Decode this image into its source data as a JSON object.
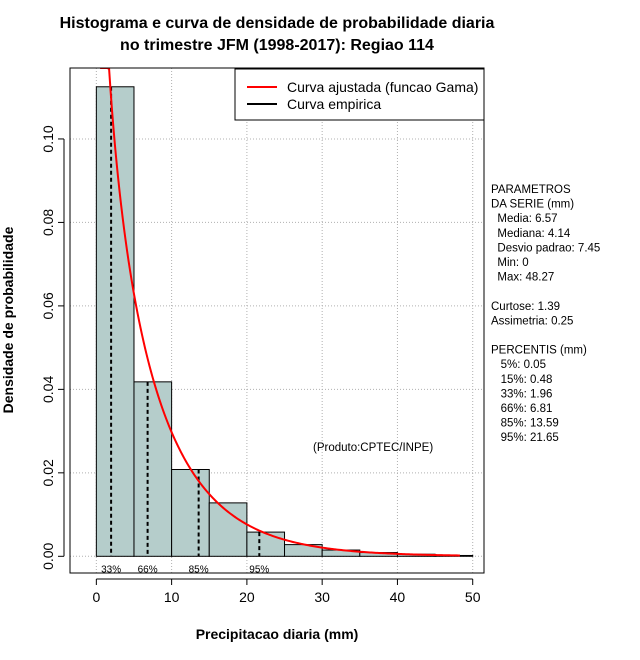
{
  "chart_data": {
    "type": "bar",
    "title_line1": "Histograma e curva de densidade de probabilidade diaria",
    "title_line2": "no trimestre JFM (1998-2017): Regiao 114",
    "xlabel": "Precipitacao diaria (mm)",
    "ylabel": "Densidade de probabilidade",
    "xlim": [
      -3.5,
      51.5
    ],
    "ylim": [
      -0.004,
      0.117
    ],
    "x_ticks": [
      0,
      10,
      20,
      30,
      40,
      50
    ],
    "y_ticks": [
      0.0,
      0.02,
      0.04,
      0.06,
      0.08,
      0.1
    ],
    "y_tick_labels": [
      "0.00",
      "0.02",
      "0.04",
      "0.06",
      "0.08",
      "0.10"
    ],
    "grid": true,
    "bins": [
      {
        "x0": 0,
        "x1": 5,
        "density": 0.1125
      },
      {
        "x0": 5,
        "x1": 10,
        "density": 0.0418
      },
      {
        "x0": 10,
        "x1": 15,
        "density": 0.0208
      },
      {
        "x0": 15,
        "x1": 20,
        "density": 0.0128
      },
      {
        "x0": 20,
        "x1": 25,
        "density": 0.0058
      },
      {
        "x0": 25,
        "x1": 30,
        "density": 0.0028
      },
      {
        "x0": 30,
        "x1": 35,
        "density": 0.0015
      },
      {
        "x0": 35,
        "x1": 40,
        "density": 0.0009
      },
      {
        "x0": 40,
        "x1": 45,
        "density": 0.0005
      },
      {
        "x0": 45,
        "x1": 50,
        "density": 0.0002
      }
    ],
    "fitted_curve": {
      "name": "Curva ajustada (funcao Gama)",
      "color": "#ff0000",
      "distribution": "gamma",
      "shape": 0.8,
      "scale": 8.2,
      "x_start": 0.5,
      "x_end": 48.3
    },
    "empirical_curve": {
      "name": "Curva empirica",
      "color": "#000000"
    },
    "percentile_markers": [
      {
        "label": "33%",
        "x": 1.96
      },
      {
        "label": "66%",
        "x": 6.81
      },
      {
        "label": "85%",
        "x": 13.59
      },
      {
        "label": "95%",
        "x": 21.65
      }
    ],
    "bar_color": "#b5cdcb",
    "credit": "(Produto:CPTEC/INPE)",
    "stats_lines": [
      "PARAMETROS",
      "DA SERIE (mm)",
      "  Media: 6.57",
      "  Mediana: 4.14",
      "  Desvio padrao: 7.45",
      "  Min: 0",
      "  Max: 48.27",
      "",
      "Curtose: 1.39",
      "Assimetria: 0.25",
      "",
      "PERCENTIS (mm)",
      "   5%: 0.05",
      "   15%: 0.48",
      "   33%: 1.96",
      "   66%: 6.81",
      "   85%: 13.59",
      "   95%: 21.65"
    ]
  }
}
